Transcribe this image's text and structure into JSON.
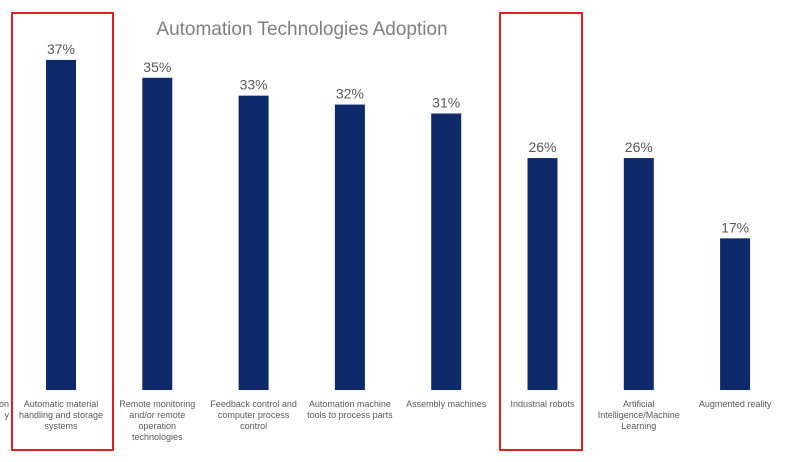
{
  "chart_data": {
    "type": "bar",
    "title": "Automation Technologies Adoption",
    "xlabel": "",
    "ylabel": "",
    "ylim": [
      0,
      40
    ],
    "grid": false,
    "legend": "none",
    "value_suffix": "%",
    "bar_color": "#0f2a6b",
    "highlight_color": "#e02020",
    "partial_left_label": [
      "on",
      "y"
    ],
    "categories": [
      [
        "Automatic material",
        "handling and storage",
        "systems"
      ],
      [
        "Remote monitoring",
        "and/or remote",
        "operation",
        "technologies"
      ],
      [
        "Feedback control and",
        "computer process",
        "control"
      ],
      [
        "Automation machine",
        "tools to process parts"
      ],
      [
        "Assembly machines"
      ],
      [
        "Industrial robots"
      ],
      [
        "Artificial",
        "Intelligence/Machine",
        "Learning"
      ],
      [
        "Augmented reality"
      ]
    ],
    "values": [
      37,
      35,
      33,
      32,
      31,
      26,
      26,
      17
    ],
    "data_labels": [
      "37%",
      "35%",
      "33%",
      "32%",
      "31%",
      "26%",
      "26%",
      "17%"
    ],
    "highlighted": [
      "Automatic material handling and storage systems",
      "Industrial robots"
    ]
  }
}
